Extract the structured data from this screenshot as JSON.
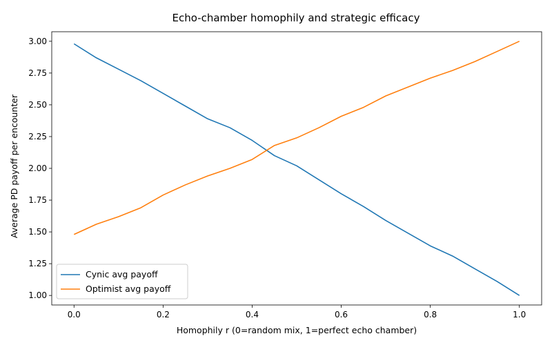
{
  "chart_data": {
    "type": "line",
    "title": "Echo-chamber homophily and strategic efficacy",
    "xlabel": "Homophily r (0=random mix, 1=perfect echo chamber)",
    "ylabel": "Average PD payoff per encounter",
    "xlim": [
      -0.05,
      1.05
    ],
    "ylim": [
      0.925,
      3.075
    ],
    "xticks": [
      0.0,
      0.2,
      0.4,
      0.6,
      0.8,
      1.0
    ],
    "xtick_labels": [
      "0.0",
      "0.2",
      "0.4",
      "0.6",
      "0.8",
      "1.0"
    ],
    "yticks": [
      1.0,
      1.25,
      1.5,
      1.75,
      2.0,
      2.25,
      2.5,
      2.75,
      3.0
    ],
    "ytick_labels": [
      "1.00",
      "1.25",
      "1.50",
      "1.75",
      "2.00",
      "2.25",
      "2.50",
      "2.75",
      "3.00"
    ],
    "grid": false,
    "legend_position": "lower-left",
    "x": [
      0.0,
      0.05,
      0.1,
      0.15,
      0.2,
      0.25,
      0.3,
      0.35,
      0.4,
      0.45,
      0.5,
      0.55,
      0.6,
      0.65,
      0.7,
      0.75,
      0.8,
      0.85,
      0.9,
      0.95,
      1.0
    ],
    "series": [
      {
        "name": "Cynic avg payoff",
        "color": "#1f77b4",
        "values": [
          2.98,
          2.87,
          2.78,
          2.69,
          2.59,
          2.49,
          2.39,
          2.32,
          2.22,
          2.1,
          2.02,
          1.91,
          1.8,
          1.7,
          1.59,
          1.49,
          1.39,
          1.31,
          1.21,
          1.11,
          1.0
        ]
      },
      {
        "name": "Optimist avg payoff",
        "color": "#ff7f0e",
        "values": [
          1.48,
          1.56,
          1.62,
          1.69,
          1.79,
          1.87,
          1.94,
          2.0,
          2.07,
          2.18,
          2.24,
          2.32,
          2.41,
          2.48,
          2.57,
          2.64,
          2.71,
          2.77,
          2.84,
          2.92,
          3.0
        ]
      }
    ]
  }
}
